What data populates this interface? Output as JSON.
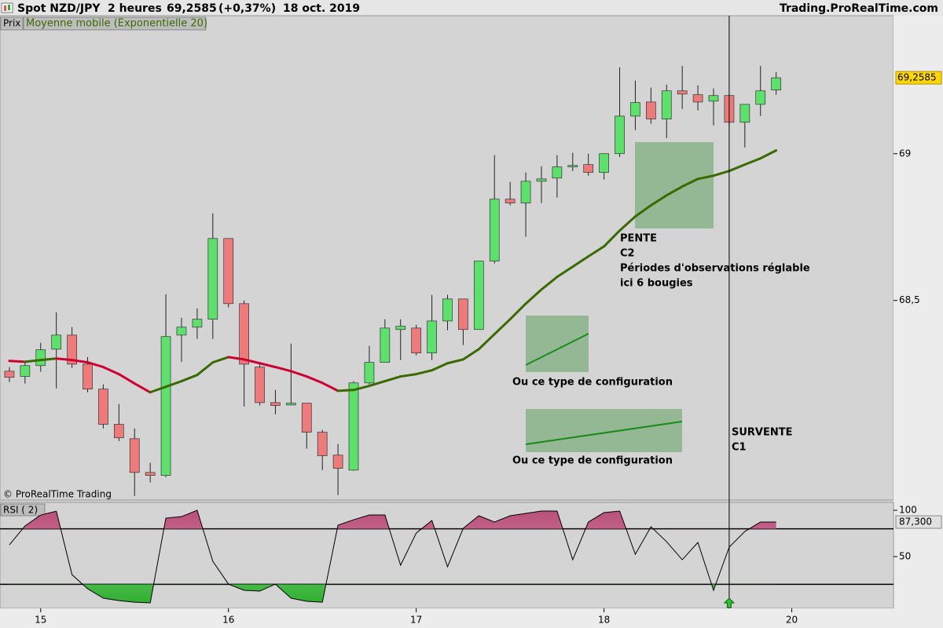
{
  "header": {
    "instrument": "Spot NZD/JPY",
    "timeframe": "2 heures",
    "price": "69,2585",
    "change": "(+0,37%)",
    "date": "18 oct. 2019",
    "site": "Trading.ProRealTime.com"
  },
  "chart_data": [
    {
      "type": "candlestick",
      "legend_label": "Prix",
      "copyright": "© ProRealTime Trading",
      "x": [
        0,
        1,
        2,
        3,
        4,
        5,
        6,
        7,
        8,
        9,
        10,
        11,
        12,
        13,
        14,
        15,
        16,
        17,
        18,
        19,
        20,
        21,
        22,
        23,
        24,
        25,
        26,
        27,
        28,
        29,
        30,
        31,
        32,
        33,
        34,
        35,
        36,
        37,
        38,
        39,
        40,
        41,
        42,
        43,
        44,
        45,
        46,
        47,
        48,
        49
      ],
      "open": [
        68.259,
        68.241,
        68.278,
        68.334,
        68.382,
        68.283,
        68.198,
        68.078,
        68.029,
        67.914,
        67.904,
        68.382,
        68.409,
        68.436,
        68.711,
        68.489,
        68.273,
        68.152,
        68.144,
        68.15,
        68.051,
        67.973,
        67.922,
        68.219,
        68.289,
        68.401,
        68.406,
        68.321,
        68.43,
        68.505,
        68.401,
        68.634,
        68.845,
        68.832,
        68.906,
        68.917,
        68.955,
        68.963,
        68.936,
        69.0,
        69.128,
        69.176,
        69.118,
        69.214,
        69.201,
        69.179,
        69.198,
        69.107,
        69.168,
        69.217
      ],
      "high": [
        68.273,
        68.291,
        68.356,
        68.46,
        68.409,
        68.307,
        68.214,
        68.147,
        68.064,
        67.947,
        68.521,
        68.441,
        68.473,
        68.797,
        68.711,
        68.5,
        68.281,
        68.195,
        68.353,
        68.15,
        68.059,
        68.011,
        68.225,
        68.345,
        68.436,
        68.436,
        68.417,
        68.519,
        68.519,
        68.505,
        68.634,
        68.995,
        68.904,
        68.936,
        68.957,
        68.995,
        69.003,
        69.0,
        69.0,
        69.294,
        69.249,
        69.225,
        69.235,
        69.299,
        69.233,
        69.222,
        69.198,
        69.168,
        69.299,
        69.278
      ],
      "low": [
        68.222,
        68.217,
        68.257,
        68.2,
        68.27,
        68.187,
        68.064,
        68.021,
        67.834,
        67.88,
        67.898,
        68.291,
        68.369,
        68.369,
        68.476,
        68.139,
        68.142,
        68.112,
        68.142,
        67.995,
        67.922,
        67.837,
        67.92,
        68.214,
        68.289,
        68.297,
        68.313,
        68.297,
        68.398,
        68.348,
        68.401,
        68.626,
        68.824,
        68.717,
        68.832,
        68.85,
        68.941,
        68.925,
        68.912,
        68.989,
        69.08,
        69.102,
        69.053,
        69.152,
        69.147,
        69.096,
        69.096,
        69.021,
        69.128,
        69.201
      ],
      "close": [
        68.238,
        68.278,
        68.332,
        68.382,
        68.283,
        68.198,
        68.078,
        68.032,
        67.914,
        67.904,
        68.377,
        68.409,
        68.436,
        68.711,
        68.489,
        68.283,
        68.152,
        68.142,
        68.15,
        68.051,
        67.971,
        67.928,
        68.219,
        68.289,
        68.406,
        68.412,
        68.321,
        68.43,
        68.505,
        68.401,
        68.634,
        68.845,
        68.832,
        68.906,
        68.914,
        68.955,
        68.96,
        68.936,
        69.0,
        69.128,
        69.174,
        69.118,
        69.214,
        69.203,
        69.176,
        69.198,
        69.107,
        69.168,
        69.214,
        69.2585
      ],
      "up_color": "#5ee06c",
      "down_color": "#ee7b7b",
      "ema": {
        "name": "Moyenne mobile (Exponentielle 20)",
        "up_color": "#3a6a00",
        "down_color": "#cc0033",
        "values": [
          68.294,
          68.291,
          68.297,
          68.302,
          68.297,
          68.289,
          68.273,
          68.249,
          68.217,
          68.187,
          68.206,
          68.225,
          68.246,
          68.289,
          68.307,
          68.299,
          68.286,
          68.273,
          68.259,
          68.241,
          68.219,
          68.192,
          68.195,
          68.209,
          68.225,
          68.241,
          68.249,
          68.262,
          68.286,
          68.299,
          68.334,
          68.385,
          68.436,
          68.489,
          68.537,
          68.58,
          68.615,
          68.65,
          68.684,
          68.738,
          68.786,
          68.824,
          68.858,
          68.888,
          68.914,
          68.925,
          68.941,
          68.963,
          68.984,
          69.011
        ]
      },
      "last_price": {
        "value": 69.2585,
        "label": "69,2585"
      },
      "xlim": [
        -0.6,
        56.5
      ],
      "ylim": [
        67.82,
        69.47
      ],
      "yticks": [
        {
          "value": 69,
          "label": "69"
        },
        {
          "value": 68.5,
          "label": "68,5"
        }
      ],
      "xticks": [
        {
          "value": 2,
          "label": "15"
        },
        {
          "value": 14,
          "label": "16"
        },
        {
          "value": 26,
          "label": "17"
        },
        {
          "value": 38,
          "label": "18"
        },
        {
          "value": 50,
          "label": "20"
        }
      ],
      "annotations": [
        "PENTE",
        "C2",
        "Périodes d'observations réglable",
        "ici 6 bougies",
        "Ou ce type de configuration",
        "Ou ce type de configuration",
        "SURVENTE",
        "C1"
      ]
    },
    {
      "type": "line",
      "name": "RSI ( 2)",
      "color": "#000000",
      "values": [
        62.7,
        83.1,
        94.9,
        99,
        30.5,
        15.3,
        5.1,
        2.5,
        0.8,
        0,
        91.5,
        93.2,
        100,
        44.9,
        20.3,
        13.6,
        12.7,
        20.3,
        5.1,
        1.7,
        0.8,
        83.9,
        89.8,
        94.9,
        94.9,
        40.7,
        75.4,
        89.0,
        39.0,
        80.5,
        94.1,
        87.3,
        94.1,
        96.6,
        99.2,
        99.2,
        46.6,
        87.3,
        97.5,
        99.2,
        52.5,
        82.2,
        66.1,
        46.6,
        65.3,
        13.6,
        60.2,
        77.1,
        87.3,
        87.3
      ],
      "ylim": [
        -5.9,
        108.5
      ],
      "yticks": [
        100,
        50
      ],
      "levels": [
        80,
        20
      ],
      "upper_color": "#b8507a",
      "lower_color": "#4fc24f",
      "last": {
        "value": 87.3,
        "label": "87,300"
      },
      "signals": [
        46
      ]
    }
  ]
}
